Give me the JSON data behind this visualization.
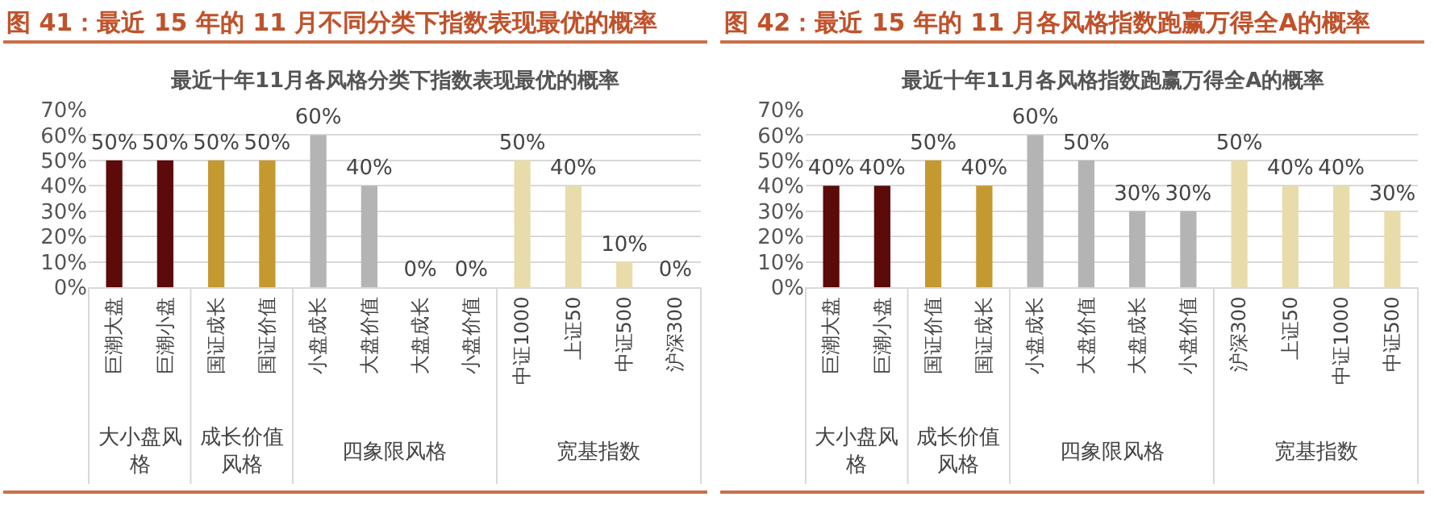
{
  "chart_data": [
    {
      "type": "bar",
      "title": "图 41：最近 15 年的 11 月不同分类下指数表现最优的概率",
      "subtitle": "最近十年11月各风格分类下指数表现最优的概率",
      "categories": [
        "巨潮大盘",
        "巨潮小盘",
        "国证成长",
        "国证价值",
        "小盘成长",
        "大盘价值",
        "大盘成长",
        "小盘价值",
        "中证1000",
        "上证50",
        "中证500",
        "沪深300"
      ],
      "values": [
        50,
        50,
        50,
        50,
        60,
        40,
        0,
        0,
        50,
        40,
        10,
        0
      ],
      "value_labels": [
        "50%",
        "50%",
        "50%",
        "50%",
        "60%",
        "40%",
        "0%",
        "0%",
        "50%",
        "40%",
        "10%",
        "0%"
      ],
      "colors": [
        "#5c0a0a",
        "#5c0a0a",
        "#c49a30",
        "#c49a30",
        "#b4b4b4",
        "#b4b4b4",
        "#b4b4b4",
        "#b4b4b4",
        "#e9dcab",
        "#e9dcab",
        "#e9dcab",
        "#e9dcab"
      ],
      "annotations": [
        "大小盘风格",
        "成长价值风格",
        "四象限风格",
        "宽基指数"
      ],
      "ylim": [
        0,
        70
      ],
      "yticks": [
        {
          "value": 0,
          "label": "0%"
        },
        {
          "value": 10,
          "label": "10%"
        },
        {
          "value": 20,
          "label": "20%"
        },
        {
          "value": 30,
          "label": "30%"
        },
        {
          "value": 40,
          "label": "40%"
        },
        {
          "value": 50,
          "label": "50%"
        },
        {
          "value": 60,
          "label": "60%"
        },
        {
          "value": 70,
          "label": "70%"
        }
      ],
      "grid": "y"
    },
    {
      "type": "bar",
      "title": "图 42：最近 15 年的 11 月各风格指数跑赢万得全A的概率",
      "subtitle": "最近十年11月各风格指数跑赢万得全A的概率",
      "categories": [
        "巨潮大盘",
        "巨潮小盘",
        "国证价值",
        "国证成长",
        "小盘成长",
        "大盘价值",
        "大盘成长",
        "小盘价值",
        "沪深300",
        "上证50",
        "中证1000",
        "中证500"
      ],
      "values": [
        40,
        40,
        50,
        40,
        60,
        50,
        30,
        30,
        50,
        40,
        40,
        30
      ],
      "value_labels": [
        "40%",
        "40%",
        "50%",
        "40%",
        "60%",
        "50%",
        "30%",
        "30%",
        "50%",
        "40%",
        "40%",
        "30%"
      ],
      "colors": [
        "#5c0a0a",
        "#5c0a0a",
        "#c49a30",
        "#c49a30",
        "#b4b4b4",
        "#b4b4b4",
        "#b4b4b4",
        "#b4b4b4",
        "#e9dcab",
        "#e9dcab",
        "#e9dcab",
        "#e9dcab"
      ],
      "annotations": [
        "大小盘风格",
        "成长价值风格",
        "四象限风格",
        "宽基指数"
      ],
      "ylim": [
        0,
        70
      ],
      "yticks": [
        {
          "value": 0,
          "label": "0%"
        },
        {
          "value": 10,
          "label": "10%"
        },
        {
          "value": 20,
          "label": "20%"
        },
        {
          "value": 30,
          "label": "30%"
        },
        {
          "value": 40,
          "label": "40%"
        },
        {
          "value": 50,
          "label": "50%"
        },
        {
          "value": 60,
          "label": "60%"
        },
        {
          "value": 70,
          "label": "70%"
        }
      ],
      "grid": "y"
    }
  ]
}
